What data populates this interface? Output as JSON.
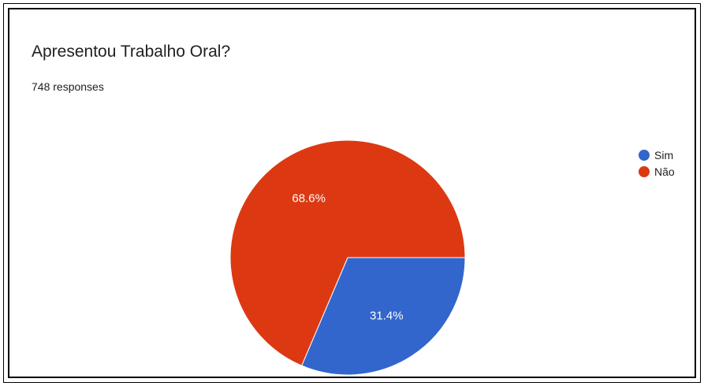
{
  "title": "Apresentou Trabalho Oral?",
  "responses": "748 responses",
  "chart_data": {
    "type": "pie",
    "title": "Apresentou Trabalho Oral?",
    "categories": [
      "Sim",
      "Não"
    ],
    "values": [
      31.4,
      68.6
    ],
    "labels": [
      "31.4%",
      "68.6%"
    ],
    "colors": [
      "#3366cc",
      "#dc3912"
    ],
    "legend_position": "top-right"
  }
}
